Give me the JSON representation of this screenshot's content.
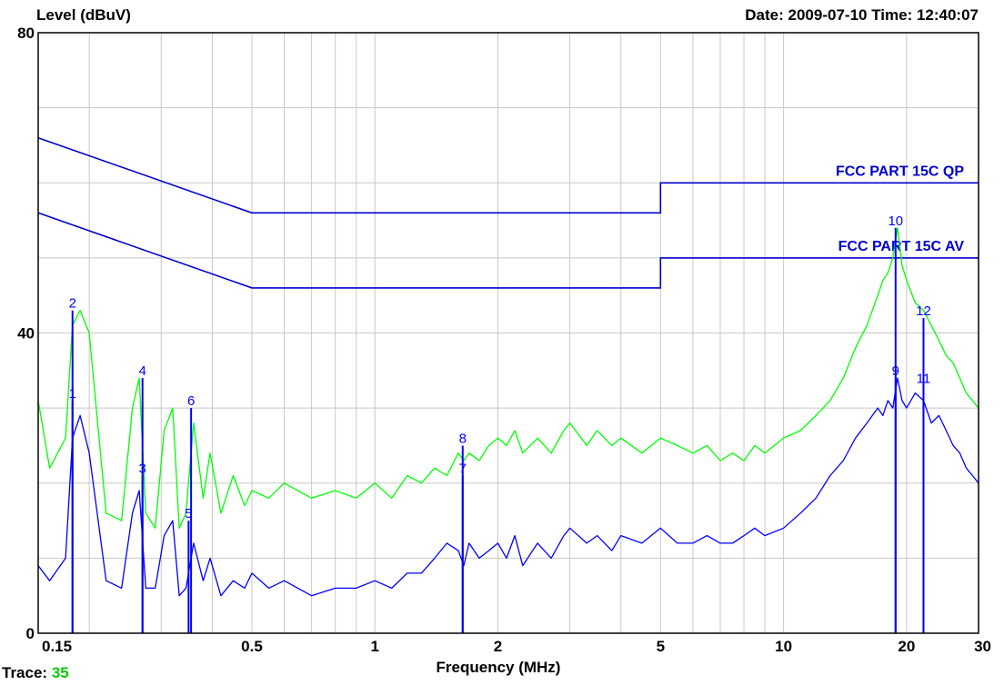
{
  "header": {
    "ylabel": "Level (dBuV)",
    "datetime": "Date: 2009-07-10  Time: 12:40:07"
  },
  "footer": {
    "xlabel": "Frequency (MHz)",
    "trace_label": "Trace:",
    "trace_value": "35"
  },
  "colors": {
    "background": "#ffffff",
    "grid": "#c8c8c8",
    "frame": "#000000",
    "qp_trace": "#00ff00",
    "av_trace": "#0000ff",
    "limit": "#0000cc",
    "marker": "#0000ff",
    "trace_value": "#00cc00"
  },
  "chart_data": {
    "type": "line",
    "title": "",
    "xlabel": "Frequency (MHz)",
    "ylabel": "Level (dBuV)",
    "xscale": "log",
    "xlim": [
      0.15,
      30
    ],
    "ylim": [
      0,
      80
    ],
    "x_ticks": [
      {
        "value": 0.15,
        "label": "0.15"
      },
      {
        "value": 0.5,
        "label": "0.5"
      },
      {
        "value": 1,
        "label": "1"
      },
      {
        "value": 2,
        "label": "2"
      },
      {
        "value": 5,
        "label": "5"
      },
      {
        "value": 10,
        "label": "10"
      },
      {
        "value": 20,
        "label": "20"
      },
      {
        "value": 30,
        "label": "30"
      }
    ],
    "y_ticks": [
      {
        "value": 0,
        "label": "0"
      },
      {
        "value": 40,
        "label": "40"
      },
      {
        "value": 80,
        "label": "80"
      }
    ],
    "grid": true,
    "limits": [
      {
        "name": "FCC PART 15C QP",
        "x": [
          0.15,
          0.5,
          5,
          5,
          30
        ],
        "y": [
          66,
          56,
          56,
          60,
          60
        ]
      },
      {
        "name": "FCC PART 15C AV",
        "x": [
          0.15,
          0.5,
          5,
          5,
          30
        ],
        "y": [
          56,
          46,
          46,
          50,
          50
        ]
      }
    ],
    "series": [
      {
        "id": "qp",
        "x": [
          0.15,
          0.16,
          0.175,
          0.182,
          0.19,
          0.2,
          0.22,
          0.24,
          0.255,
          0.265,
          0.275,
          0.29,
          0.305,
          0.32,
          0.332,
          0.345,
          0.36,
          0.38,
          0.395,
          0.42,
          0.45,
          0.48,
          0.5,
          0.55,
          0.6,
          0.7,
          0.8,
          0.9,
          1.0,
          1.1,
          1.2,
          1.3,
          1.4,
          1.5,
          1.6,
          1.65,
          1.7,
          1.8,
          1.9,
          2.0,
          2.1,
          2.2,
          2.3,
          2.5,
          2.7,
          2.9,
          3.0,
          3.3,
          3.5,
          3.8,
          4.0,
          4.5,
          5.0,
          5.5,
          6.0,
          6.5,
          7.0,
          7.5,
          8.0,
          8.5,
          9.0,
          10.0,
          11.0,
          12.0,
          13.0,
          14.0,
          15.0,
          16.0,
          17.0,
          17.5,
          18.0,
          18.5,
          19.0,
          19.5,
          20.0,
          21.0,
          22.0,
          23.0,
          24.0,
          25.0,
          26.0,
          27.0,
          28.0,
          29.0,
          30.0
        ],
        "y": [
          31,
          22,
          26,
          41,
          43,
          40,
          16,
          15,
          30,
          34,
          16,
          14,
          27,
          30,
          14,
          16,
          28,
          18,
          24,
          16,
          21,
          17,
          19,
          18,
          20,
          18,
          19,
          18,
          20,
          18,
          21,
          20,
          22,
          21,
          24,
          23,
          24,
          23,
          25,
          26,
          25,
          27,
          24,
          26,
          24,
          27,
          28,
          25,
          27,
          25,
          26,
          24,
          26,
          25,
          24,
          25,
          23,
          24,
          23,
          25,
          24,
          26,
          27,
          29,
          31,
          34,
          38,
          41,
          45,
          47,
          48,
          50,
          54,
          49,
          47,
          44,
          43,
          41,
          39,
          37,
          36,
          34,
          32,
          31,
          30
        ]
      },
      {
        "id": "av",
        "x": [
          0.15,
          0.16,
          0.175,
          0.182,
          0.19,
          0.2,
          0.22,
          0.24,
          0.255,
          0.265,
          0.275,
          0.29,
          0.305,
          0.32,
          0.332,
          0.345,
          0.36,
          0.38,
          0.395,
          0.42,
          0.45,
          0.48,
          0.5,
          0.55,
          0.6,
          0.7,
          0.8,
          0.9,
          1.0,
          1.1,
          1.2,
          1.3,
          1.4,
          1.5,
          1.6,
          1.65,
          1.7,
          1.8,
          1.9,
          2.0,
          2.1,
          2.2,
          2.3,
          2.5,
          2.7,
          2.9,
          3.0,
          3.3,
          3.5,
          3.8,
          4.0,
          4.5,
          5.0,
          5.5,
          6.0,
          6.5,
          7.0,
          7.5,
          8.0,
          8.5,
          9.0,
          10.0,
          11.0,
          12.0,
          13.0,
          14.0,
          15.0,
          16.0,
          17.0,
          17.5,
          18.0,
          18.5,
          19.0,
          19.5,
          20.0,
          21.0,
          22.0,
          23.0,
          24.0,
          25.0,
          26.0,
          27.0,
          28.0,
          29.0,
          30.0
        ],
        "y": [
          9,
          7,
          10,
          26,
          29,
          24,
          7,
          6,
          16,
          19,
          6,
          6,
          13,
          15,
          5,
          6,
          12,
          7,
          10,
          5,
          7,
          6,
          8,
          6,
          7,
          5,
          6,
          6,
          7,
          6,
          8,
          8,
          10,
          12,
          11,
          9,
          12,
          10,
          11,
          12,
          10,
          13,
          9,
          12,
          10,
          13,
          14,
          12,
          13,
          11,
          13,
          12,
          14,
          12,
          12,
          13,
          12,
          12,
          13,
          14,
          13,
          14,
          16,
          18,
          21,
          23,
          26,
          28,
          30,
          29,
          31,
          30,
          34,
          31,
          30,
          32,
          31,
          28,
          29,
          27,
          25,
          24,
          22,
          21,
          20
        ]
      }
    ],
    "markers": [
      {
        "label": "1",
        "x": 0.182,
        "y": 31
      },
      {
        "label": "2",
        "x": 0.182,
        "y": 43
      },
      {
        "label": "3",
        "x": 0.27,
        "y": 21
      },
      {
        "label": "4",
        "x": 0.27,
        "y": 34
      },
      {
        "label": "5",
        "x": 0.35,
        "y": 15
      },
      {
        "label": "6",
        "x": 0.355,
        "y": 30
      },
      {
        "label": "7",
        "x": 1.64,
        "y": 21
      },
      {
        "label": "8",
        "x": 1.64,
        "y": 25
      },
      {
        "label": "9",
        "x": 18.8,
        "y": 34
      },
      {
        "label": "10",
        "x": 18.8,
        "y": 54
      },
      {
        "label": "11",
        "x": 22.0,
        "y": 33
      },
      {
        "label": "12",
        "x": 22.0,
        "y": 42
      }
    ]
  }
}
